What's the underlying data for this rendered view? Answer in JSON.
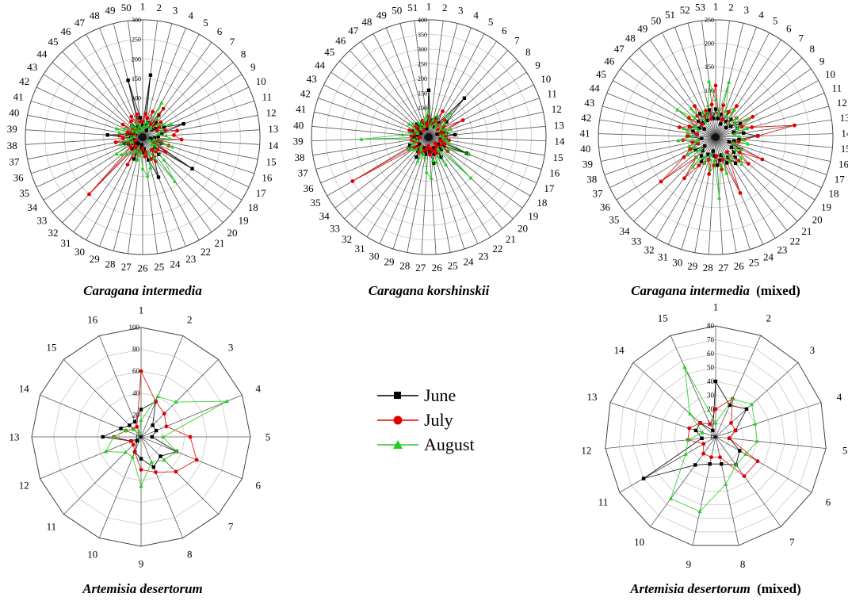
{
  "legend": [
    {
      "name": "June",
      "color": "#000000",
      "marker": "square"
    },
    {
      "name": "July",
      "color": "#e00000",
      "marker": "circle"
    },
    {
      "name": "August",
      "color": "#22cc22",
      "marker": "triangle"
    }
  ],
  "chart_data": [
    {
      "type": "radar",
      "caption_italic": "Caragana intermedia",
      "caption_suffix": "",
      "categories": [
        "1",
        "2",
        "3",
        "4",
        "5",
        "6",
        "7",
        "8",
        "9",
        "10",
        "11",
        "12",
        "13",
        "14",
        "15",
        "16",
        "17",
        "18",
        "19",
        "20",
        "21",
        "22",
        "23",
        "24",
        "25",
        "26",
        "27",
        "28",
        "29",
        "30",
        "31",
        "32",
        "33",
        "34",
        "35",
        "36",
        "37",
        "38",
        "39",
        "40",
        "41",
        "42",
        "43",
        "44",
        "45",
        "46",
        "47",
        "48",
        "49",
        "50"
      ],
      "ticks": [
        0,
        50,
        100,
        150,
        200,
        250,
        300
      ],
      "rmax": 300,
      "series": [
        {
          "name": "June",
          "values": [
            30,
            160,
            30,
            40,
            20,
            70,
            50,
            30,
            40,
            60,
            110,
            50,
            40,
            30,
            20,
            50,
            30,
            150,
            40,
            60,
            40,
            60,
            110,
            60,
            30,
            40,
            20,
            30,
            60,
            30,
            20,
            40,
            20,
            30,
            40,
            50,
            20,
            30,
            90,
            40,
            30,
            20,
            30,
            30,
            40,
            30,
            20,
            30,
            150,
            50
          ]
        },
        {
          "name": "July",
          "values": [
            40,
            60,
            50,
            70,
            40,
            90,
            40,
            60,
            50,
            40,
            60,
            90,
            80,
            100,
            40,
            70,
            30,
            70,
            50,
            50,
            40,
            70,
            60,
            40,
            50,
            30,
            40,
            60,
            30,
            80,
            30,
            200,
            40,
            30,
            20,
            40,
            70,
            50,
            60,
            20,
            40,
            30,
            60,
            30,
            20,
            50,
            60,
            40,
            60,
            40
          ]
        },
        {
          "name": "August",
          "values": [
            20,
            30,
            40,
            30,
            100,
            60,
            30,
            50,
            60,
            80,
            50,
            40,
            60,
            70,
            30,
            80,
            20,
            40,
            30,
            80,
            140,
            60,
            40,
            80,
            100,
            80,
            40,
            60,
            30,
            40,
            50,
            60,
            70,
            80,
            30,
            60,
            40,
            30,
            20,
            60,
            70,
            50,
            30,
            20,
            40,
            30,
            20,
            40,
            30,
            20
          ]
        }
      ]
    },
    {
      "type": "radar",
      "caption_italic": "Caragana korshinskii",
      "caption_suffix": "",
      "categories": [
        "1",
        "2",
        "3",
        "4",
        "5",
        "6",
        "7",
        "8",
        "9",
        "10",
        "11",
        "12",
        "13",
        "14",
        "15",
        "16",
        "17",
        "18",
        "19",
        "20",
        "21",
        "22",
        "23",
        "24",
        "25",
        "26",
        "27",
        "28",
        "29",
        "30",
        "31",
        "32",
        "33",
        "34",
        "35",
        "36",
        "37",
        "38",
        "39",
        "40",
        "41",
        "42",
        "43",
        "44",
        "45",
        "46",
        "47",
        "48",
        "49",
        "50",
        "51"
      ],
      "ticks": [
        0,
        50,
        100,
        150,
        200,
        250,
        300,
        350,
        400
      ],
      "rmax": 400,
      "series": [
        {
          "name": "June",
          "values": [
            160,
            50,
            60,
            70,
            40,
            60,
            180,
            80,
            60,
            50,
            30,
            60,
            90,
            40,
            60,
            40,
            140,
            60,
            40,
            60,
            50,
            80,
            40,
            60,
            90,
            50,
            40,
            60,
            50,
            40,
            80,
            60,
            50,
            40,
            80,
            70,
            40,
            50,
            30,
            50,
            40,
            60,
            30,
            40,
            50,
            60,
            40,
            50,
            40,
            30,
            40
          ]
        },
        {
          "name": "July",
          "values": [
            70,
            40,
            50,
            60,
            100,
            50,
            80,
            40,
            60,
            130,
            50,
            40,
            60,
            50,
            70,
            40,
            60,
            50,
            80,
            30,
            40,
            50,
            60,
            50,
            40,
            60,
            30,
            40,
            60,
            50,
            60,
            40,
            50,
            60,
            300,
            40,
            50,
            60,
            30,
            60,
            50,
            70,
            40,
            50,
            60,
            40,
            30,
            40,
            60,
            50,
            40
          ]
        },
        {
          "name": "August",
          "values": [
            90,
            40,
            60,
            80,
            50,
            40,
            110,
            70,
            50,
            60,
            80,
            60,
            40,
            50,
            60,
            70,
            150,
            80,
            60,
            200,
            50,
            110,
            70,
            90,
            80,
            140,
            120,
            70,
            60,
            90,
            50,
            40,
            60,
            70,
            80,
            60,
            40,
            50,
            230,
            90,
            60,
            40,
            50,
            80,
            70,
            40,
            60,
            50,
            40,
            60,
            70
          ]
        }
      ]
    },
    {
      "type": "radar",
      "caption_italic": "Caragana intermedia",
      "caption_suffix": "(mixed)",
      "categories": [
        "1",
        "2",
        "3",
        "4",
        "5",
        "6",
        "7",
        "8",
        "9",
        "10",
        "11",
        "12",
        "13",
        "14",
        "15",
        "16",
        "17",
        "18",
        "19",
        "20",
        "21",
        "22",
        "23",
        "24",
        "25",
        "26",
        "27",
        "28",
        "29",
        "30",
        "31",
        "32",
        "33",
        "34",
        "35",
        "36",
        "37",
        "38",
        "39",
        "40",
        "41",
        "42",
        "43",
        "44",
        "45",
        "46",
        "47",
        "48",
        "49",
        "50",
        "51",
        "52",
        "53"
      ],
      "ticks": [
        0,
        50,
        100,
        150,
        200,
        250
      ],
      "rmax": 250,
      "series": [
        {
          "name": "June",
          "values": [
            60,
            40,
            50,
            30,
            60,
            40,
            50,
            30,
            40,
            60,
            50,
            40,
            60,
            90,
            50,
            40,
            30,
            60,
            40,
            50,
            60,
            70,
            50,
            60,
            40,
            50,
            60,
            40,
            30,
            50,
            40,
            60,
            50,
            40,
            30,
            50,
            60,
            40,
            50,
            30,
            60,
            40,
            50,
            60,
            40,
            30,
            50,
            40,
            60,
            40,
            50,
            60,
            40
          ]
        },
        {
          "name": "July",
          "values": [
            110,
            50,
            70,
            40,
            60,
            80,
            40,
            60,
            50,
            90,
            60,
            80,
            170,
            90,
            60,
            50,
            40,
            110,
            60,
            90,
            70,
            40,
            60,
            130,
            50,
            70,
            40,
            60,
            80,
            50,
            60,
            70,
            110,
            60,
            150,
            80,
            60,
            40,
            50,
            70,
            60,
            40,
            80,
            60,
            50,
            70,
            40,
            60,
            80,
            50,
            60,
            40,
            70
          ]
        },
        {
          "name": "August",
          "values": [
            80,
            50,
            120,
            60,
            50,
            70,
            40,
            60,
            50,
            80,
            50,
            70,
            40,
            50,
            60,
            70,
            40,
            60,
            50,
            70,
            80,
            50,
            60,
            40,
            80,
            60,
            130,
            50,
            70,
            40,
            60,
            50,
            80,
            60,
            40,
            70,
            50,
            60,
            40,
            80,
            50,
            60,
            70,
            40,
            50,
            100,
            60,
            80,
            40,
            60,
            50,
            70,
            120
          ]
        }
      ]
    },
    {
      "type": "radar",
      "caption_italic": "Artemisia desertorum",
      "caption_suffix": "",
      "categories": [
        "1",
        "2",
        "3",
        "4",
        "5",
        "6",
        "7",
        "8",
        "9",
        "10",
        "11",
        "12",
        "13",
        "14",
        "15",
        "16"
      ],
      "ticks": [
        0,
        20,
        40,
        60,
        80,
        100
      ],
      "rmax": 100,
      "series": [
        {
          "name": "June",
          "values": [
            25,
            35,
            15,
            15,
            10,
            35,
            25,
            30,
            20,
            15,
            5,
            10,
            35,
            20,
            15,
            15
          ]
        },
        {
          "name": "July",
          "values": [
            60,
            35,
            30,
            25,
            45,
            55,
            45,
            35,
            30,
            15,
            10,
            10,
            25,
            15,
            10,
            10
          ]
        },
        {
          "name": "August",
          "values": [
            15,
            40,
            45,
            85,
            20,
            35,
            30,
            25,
            45,
            20,
            20,
            35,
            25,
            15,
            10,
            5
          ]
        }
      ]
    },
    {
      "type": "radar",
      "caption_italic": "Artemisia desertorum",
      "caption_suffix": "(mixed)",
      "categories": [
        "1",
        "2",
        "3",
        "4",
        "5",
        "6",
        "7",
        "8",
        "9",
        "10",
        "11",
        "12",
        "13",
        "14",
        "15"
      ],
      "ticks": [
        0,
        10,
        20,
        30,
        40,
        50,
        60,
        70,
        80
      ],
      "rmax": 80,
      "series": [
        {
          "name": "June",
          "values": [
            40,
            25,
            30,
            15,
            10,
            20,
            25,
            20,
            20,
            25,
            60,
            10,
            15,
            15,
            5
          ]
        },
        {
          "name": "July",
          "values": [
            20,
            30,
            15,
            15,
            10,
            35,
            35,
            15,
            15,
            15,
            10,
            20,
            20,
            15,
            10
          ]
        },
        {
          "name": "August",
          "values": [
            10,
            30,
            35,
            30,
            30,
            25,
            25,
            35,
            55,
            55,
            25,
            20,
            10,
            25,
            55
          ]
        }
      ]
    }
  ]
}
